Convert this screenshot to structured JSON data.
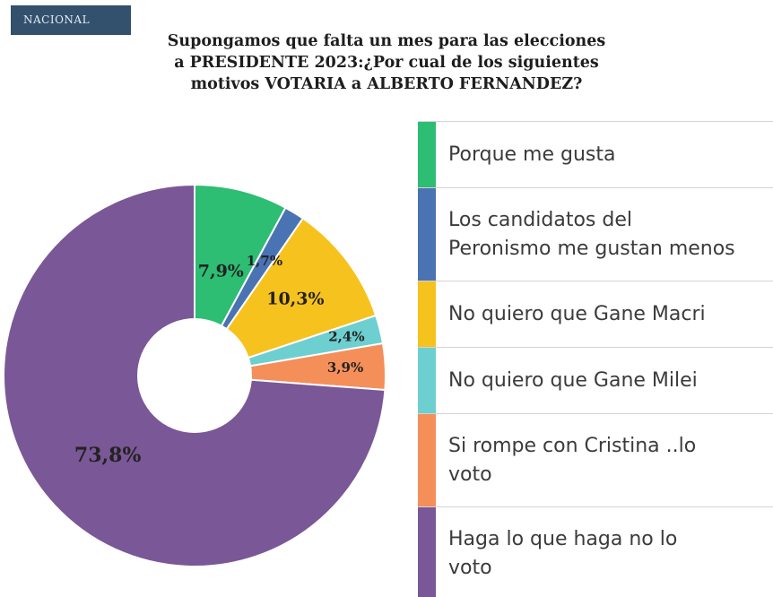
{
  "badge": "NACIONAL",
  "chart_data": {
    "type": "pie",
    "donut": true,
    "title": [
      "Supongamos que falta un mes para las elecciones",
      "a PRESIDENTE 2023:¿Por cual de los siguientes",
      "motivos VOTARIA a ALBERTO FERNANDEZ?"
    ],
    "slices": [
      {
        "name": "Porque me gusta",
        "legend": [
          "Porque me gusta"
        ],
        "value": 7.9,
        "label": "7,9%",
        "color": "#2dbd73"
      },
      {
        "name": "Los  candidatos del Peronismo me gustan menos",
        "legend": [
          "Los  candidatos del",
          "Peronismo me gustan menos"
        ],
        "value": 1.7,
        "label": "1,7%",
        "color": "#4a73b3"
      },
      {
        "name": "No quiero que Gane Macri",
        "legend": [
          "No quiero que Gane Macri"
        ],
        "value": 10.3,
        "label": "10,3%",
        "color": "#f6c21d"
      },
      {
        "name": "No quiero que Gane Milei",
        "legend": [
          "No quiero que Gane Milei"
        ],
        "value": 2.4,
        "label": "2,4%",
        "color": "#6dcfd0"
      },
      {
        "name": "Si rompe con Cristina ..lo voto",
        "legend": [
          "Si rompe con Cristina ..lo",
          "voto"
        ],
        "value": 3.9,
        "label": "3,9%",
        "color": "#f58f5a"
      },
      {
        "name": "Haga lo que haga no lo voto",
        "legend": [
          "Haga lo que haga no lo",
          "voto"
        ],
        "value": 73.8,
        "label": "73,8%",
        "color": "#7a5796"
      }
    ],
    "legend_position": "right"
  }
}
